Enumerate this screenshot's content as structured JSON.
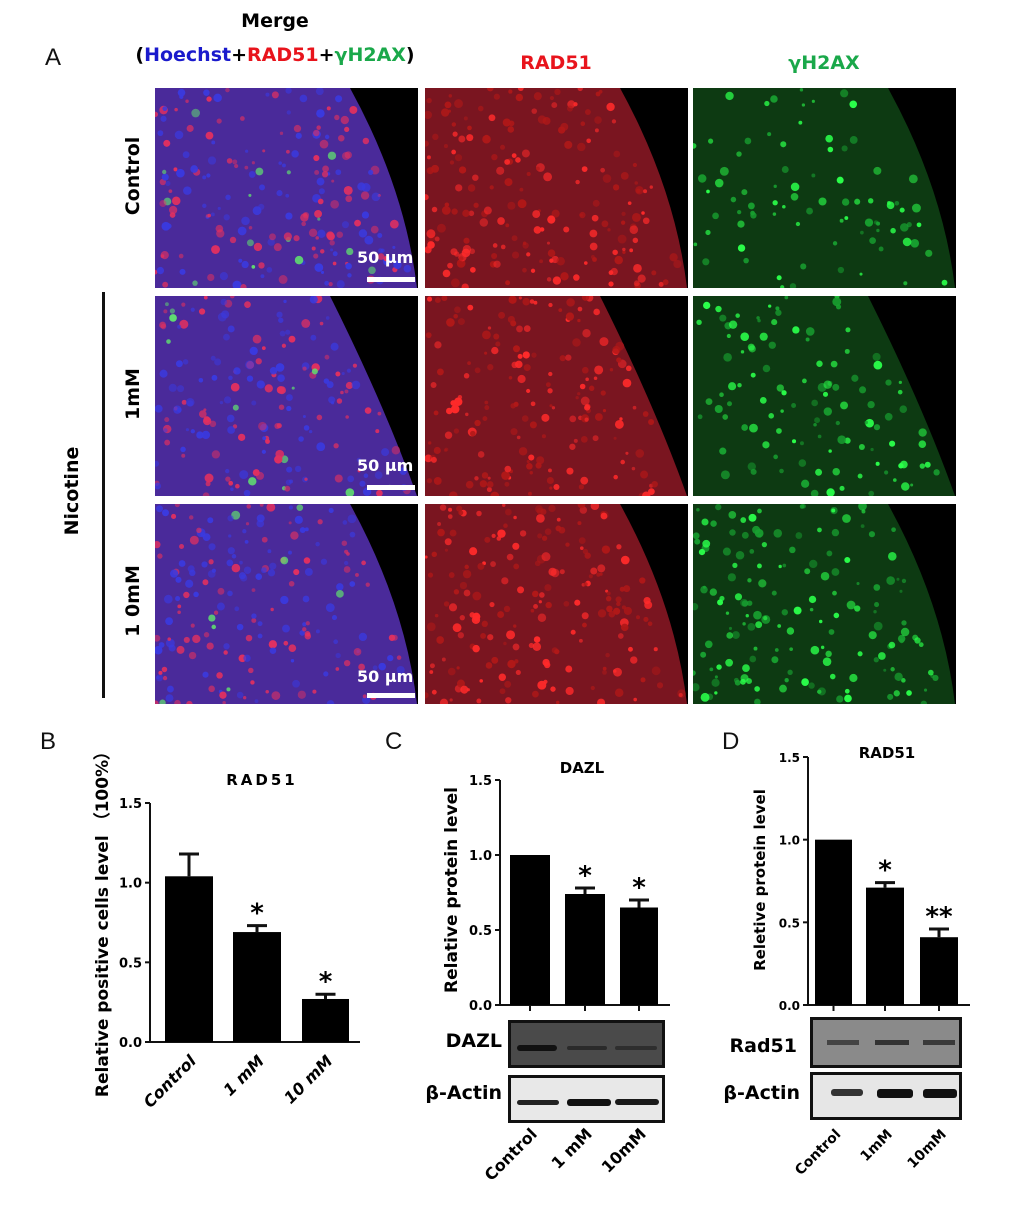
{
  "panel_a": {
    "label": "A",
    "merge_title": "Merge",
    "merge_parts": {
      "open": "(",
      "hoechst": "Hoechst",
      "plus1": "+",
      "rad51": "RAD51",
      "plus2": "+",
      "gh2ax": "γH2AX",
      "close": ")"
    },
    "col_rad51": "RAD51",
    "col_gh2ax": "γH2AX",
    "rows": [
      "Control",
      "1mM",
      "1 0mM"
    ],
    "group_label": "Nicotine",
    "scale_bar": "50 µm",
    "colors": {
      "hoechst": "#1a1acc",
      "rad51": "#e8141c",
      "gh2ax": "#1aa84a"
    }
  },
  "chart_data": [
    {
      "panel": "B",
      "type": "bar",
      "title": "RAD51",
      "ylabel": "Relative positive cells level （100%）",
      "xlabel": "",
      "categories": [
        "Control",
        "1 mM",
        "10 mM"
      ],
      "values": [
        1.04,
        0.69,
        0.27
      ],
      "errors": [
        0.14,
        0.04,
        0.03
      ],
      "significance": [
        "",
        "*",
        "*"
      ],
      "ylim": [
        0,
        1.5
      ],
      "yticks": [
        "0.0",
        "0.5",
        "1.0",
        "1.5"
      ],
      "grid": false
    },
    {
      "panel": "C",
      "type": "bar",
      "title": "DAZL",
      "ylabel": "Relative protein level",
      "xlabel": "",
      "categories": [
        "Control",
        "1 mM",
        "10mM"
      ],
      "values": [
        1.0,
        0.74,
        0.65
      ],
      "errors": [
        0,
        0.04,
        0.05
      ],
      "significance": [
        "",
        "*",
        "*"
      ],
      "ylim": [
        0,
        1.5
      ],
      "yticks": [
        "0.0",
        "0.5",
        "1.0",
        "1.5"
      ],
      "grid": false,
      "blots": [
        "DAZL",
        "β-Actin"
      ]
    },
    {
      "panel": "D",
      "type": "bar",
      "title": "RAD51",
      "ylabel": "Reletive protein level",
      "xlabel": "",
      "categories": [
        "Control",
        "1mM",
        "10mM"
      ],
      "values": [
        1.0,
        0.71,
        0.41
      ],
      "errors": [
        0,
        0.03,
        0.05
      ],
      "significance": [
        "",
        "*",
        "**"
      ],
      "ylim": [
        0,
        1.5
      ],
      "yticks": [
        "0.0",
        "0.5",
        "1.0",
        "1.5"
      ],
      "grid": false,
      "blots": [
        "Rad51",
        "β-Actin"
      ]
    }
  ]
}
